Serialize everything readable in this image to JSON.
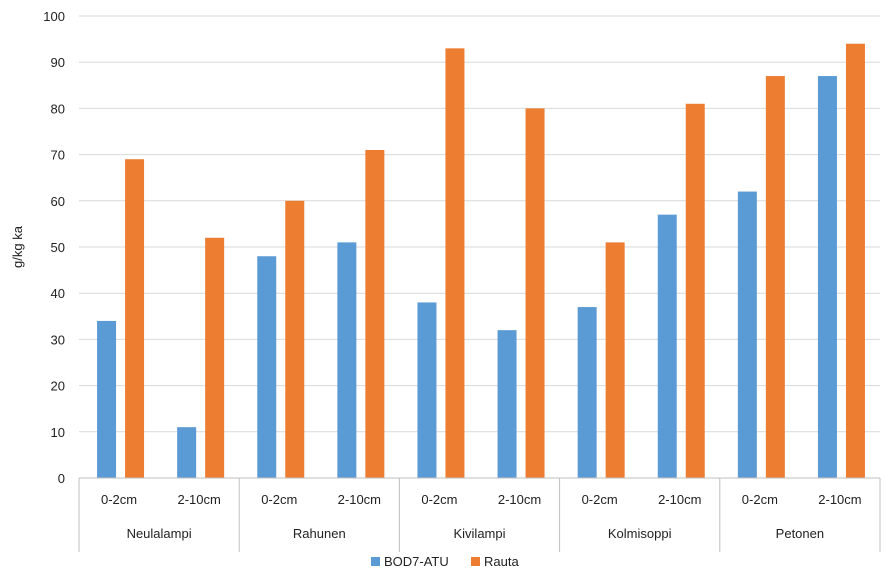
{
  "chart_data": {
    "type": "bar",
    "ylabel": "g/kg ka",
    "ylim": [
      0,
      100
    ],
    "yticks": [
      0,
      10,
      20,
      30,
      40,
      50,
      60,
      70,
      80,
      90,
      100
    ],
    "groups": [
      "Neulalampi",
      "Rahunen",
      "Kivilampi",
      "Kolmisoppi",
      "Petonen"
    ],
    "subcategories": [
      "0-2cm",
      "2-10cm"
    ],
    "categories": [
      "Neulalampi 0-2cm",
      "Neulalampi 2-10cm",
      "Rahunen 0-2cm",
      "Rahunen 2-10cm",
      "Kivilampi 0-2cm",
      "Kivilampi 2-10cm",
      "Kolmisoppi 0-2cm",
      "Kolmisoppi 2-10cm",
      "Petonen 0-2cm",
      "Petonen 2-10cm"
    ],
    "series": [
      {
        "name": "BOD7-ATU",
        "color": "#5b9bd5",
        "values": [
          34,
          11,
          48,
          51,
          38,
          32,
          37,
          57,
          62,
          87
        ]
      },
      {
        "name": "Rauta",
        "color": "#ed7d31",
        "values": [
          69,
          52,
          60,
          71,
          93,
          80,
          51,
          81,
          87,
          94
        ]
      }
    ],
    "grid": true,
    "legend": "bottom-center"
  }
}
